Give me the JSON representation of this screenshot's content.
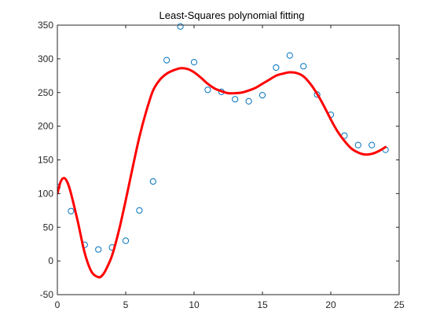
{
  "chart_data": {
    "type": "scatter",
    "title": "Least-Squares polynomial fitting",
    "xlabel": "",
    "ylabel": "",
    "xlim": [
      0,
      25
    ],
    "ylim": [
      -50,
      350
    ],
    "x_ticks": [
      "0",
      "5",
      "10",
      "15",
      "20",
      "25"
    ],
    "y_ticks": [
      "-50",
      "0",
      "50",
      "100",
      "150",
      "200",
      "250",
      "300",
      "350"
    ],
    "grid": false,
    "legend": "none",
    "series": [
      {
        "type": "scatter",
        "marker": "open-circle",
        "color": "#0072BD",
        "x": [
          0,
          1,
          2,
          3,
          4,
          5,
          6,
          7,
          8,
          9,
          10,
          11,
          12,
          13,
          14,
          15,
          16,
          17,
          18,
          19,
          20,
          21,
          22,
          23,
          24
        ],
        "y": [
          110,
          74,
          24,
          17,
          20,
          30,
          75,
          118,
          298,
          348,
          295,
          254,
          251,
          240,
          237,
          246,
          287,
          305,
          289,
          247,
          217,
          186,
          172,
          172,
          165
        ]
      },
      {
        "type": "line",
        "color": "#FF0000",
        "line_width": 3,
        "x": [
          0,
          0.25,
          0.5,
          0.75,
          1,
          1.5,
          2,
          2.5,
          3,
          3.25,
          3.5,
          4,
          4.5,
          5,
          5.5,
          6,
          6.5,
          7,
          7.5,
          8,
          8.5,
          9,
          9.5,
          10,
          10.5,
          11,
          11.5,
          12,
          12.5,
          13,
          13.5,
          14,
          14.5,
          15,
          15.5,
          16,
          16.5,
          17,
          17.5,
          18,
          18.5,
          19,
          19.5,
          20,
          20.5,
          21,
          21.5,
          22,
          22.5,
          23,
          23.5,
          24
        ],
        "y": [
          100,
          118,
          123,
          116,
          100,
          58,
          12,
          -16,
          -24,
          -22,
          -15,
          8,
          45,
          90,
          138,
          184,
          222,
          253,
          269,
          278,
          283,
          286,
          285,
          280,
          272,
          263,
          256,
          252,
          249,
          249,
          250,
          253,
          257,
          263,
          269,
          275,
          278,
          280,
          279,
          274,
          263,
          248,
          230,
          210,
          192,
          178,
          167,
          161,
          158,
          159,
          163,
          169
        ]
      }
    ]
  }
}
